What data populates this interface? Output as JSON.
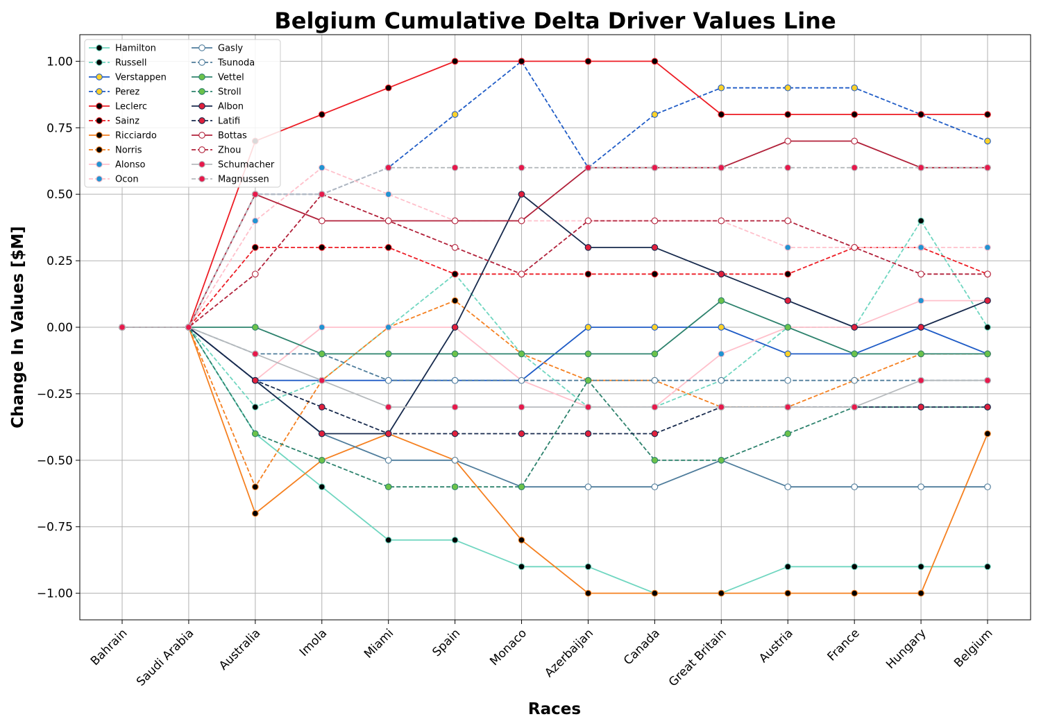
{
  "chart_data": {
    "type": "line",
    "title": "Belgium Cumulative Delta Driver Values Line",
    "xlabel": "Races",
    "ylabel": "Change In Values [$M]",
    "categories": [
      "Bahrain",
      "Saudi Arabia",
      "Australia",
      "Imola",
      "Miami",
      "Spain",
      "Monaco",
      "Azerbaijan",
      "Canada",
      "Great Britain",
      "Austria",
      "France",
      "Hungary",
      "Belgium"
    ],
    "ylim": [
      -1.1,
      1.1
    ],
    "yticks": [
      -1.0,
      -0.75,
      -0.5,
      -0.25,
      0.0,
      0.25,
      0.5,
      0.75,
      1.0
    ],
    "ytick_labels": [
      "−1.00",
      "−0.75",
      "−0.50",
      "−0.25",
      "0.00",
      "0.25",
      "0.50",
      "0.75",
      "1.00"
    ],
    "grid": true,
    "legend_position": "top-left",
    "series": [
      {
        "name": "Hamilton",
        "color": "#6fd6c0",
        "dash": "solid",
        "marker_fill": "#000000",
        "values": [
          0,
          0,
          -0.4,
          -0.6,
          -0.8,
          -0.8,
          -0.9,
          -0.9,
          -1.0,
          -1.0,
          -0.9,
          -0.9,
          -0.9,
          -0.9
        ]
      },
      {
        "name": "Russell",
        "color": "#6fd6c0",
        "dash": "dashed",
        "marker_fill": "#000000",
        "values": [
          0,
          0,
          -0.3,
          -0.2,
          0.0,
          0.2,
          -0.1,
          -0.3,
          -0.3,
          -0.2,
          0.0,
          0.0,
          0.4,
          0.0
        ]
      },
      {
        "name": "Verstappen",
        "color": "#1e5bc6",
        "dash": "solid",
        "marker_fill": "#fcd12a",
        "values": [
          0,
          0,
          -0.2,
          -0.2,
          -0.2,
          -0.2,
          -0.2,
          0.0,
          0.0,
          0.0,
          -0.1,
          -0.1,
          0.0,
          -0.1
        ]
      },
      {
        "name": "Perez",
        "color": "#1e5bc6",
        "dash": "dashed",
        "marker_fill": "#fcd12a",
        "values": [
          0,
          0,
          0.5,
          0.5,
          0.6,
          0.8,
          1.0,
          0.6,
          0.8,
          0.9,
          0.9,
          0.9,
          0.8,
          0.7
        ]
      },
      {
        "name": "Leclerc",
        "color": "#ed1c24",
        "dash": "solid",
        "marker_fill": "#000000",
        "values": [
          0,
          0,
          0.7,
          0.8,
          0.9,
          1.0,
          1.0,
          1.0,
          1.0,
          0.8,
          0.8,
          0.8,
          0.8,
          0.8
        ]
      },
      {
        "name": "Sainz",
        "color": "#ed1c24",
        "dash": "dashed",
        "marker_fill": "#000000",
        "values": [
          0,
          0,
          0.3,
          0.3,
          0.3,
          0.2,
          0.2,
          0.2,
          0.2,
          0.2,
          0.2,
          0.3,
          0.3,
          0.2
        ]
      },
      {
        "name": "Ricciardo",
        "color": "#f58020",
        "dash": "solid",
        "marker_fill": "#000000",
        "values": [
          0,
          0,
          -0.7,
          -0.5,
          -0.4,
          -0.5,
          -0.8,
          -1.0,
          -1.0,
          -1.0,
          -1.0,
          -1.0,
          -1.0,
          -0.4
        ]
      },
      {
        "name": "Norris",
        "color": "#f58020",
        "dash": "dashed",
        "marker_fill": "#000000",
        "values": [
          0,
          0,
          -0.6,
          -0.2,
          0.0,
          0.1,
          -0.1,
          -0.2,
          -0.2,
          -0.3,
          -0.3,
          -0.2,
          -0.1,
          -0.1
        ]
      },
      {
        "name": "Alonso",
        "color": "#ffc0cb",
        "dash": "solid",
        "marker_fill": "#2293d1",
        "values": [
          0,
          0,
          -0.2,
          0.0,
          0.0,
          0.0,
          -0.2,
          -0.3,
          -0.3,
          -0.1,
          0.0,
          0.0,
          0.1,
          0.1
        ]
      },
      {
        "name": "Ocon",
        "color": "#ffc0cb",
        "dash": "dashed",
        "marker_fill": "#2293d1",
        "values": [
          0,
          0,
          0.4,
          0.6,
          0.5,
          0.4,
          0.4,
          0.4,
          0.4,
          0.4,
          0.3,
          0.3,
          0.3,
          0.3
        ]
      },
      {
        "name": "Gasly",
        "color": "#4e7c9b",
        "dash": "solid",
        "marker_fill": "#ffffff",
        "values": [
          0,
          0,
          -0.2,
          -0.4,
          -0.5,
          -0.5,
          -0.6,
          -0.6,
          -0.6,
          -0.5,
          -0.6,
          -0.6,
          -0.6,
          -0.6
        ]
      },
      {
        "name": "Tsunoda",
        "color": "#4e7c9b",
        "dash": "dashed",
        "marker_fill": "#ffffff",
        "values": [
          0,
          0,
          -0.1,
          -0.1,
          -0.2,
          -0.2,
          -0.2,
          -0.2,
          -0.2,
          -0.2,
          -0.2,
          -0.2,
          -0.2,
          -0.2
        ]
      },
      {
        "name": "Vettel",
        "color": "#2d826d",
        "dash": "solid",
        "marker_fill": "#6cc24a",
        "values": [
          0,
          0,
          0.0,
          -0.1,
          -0.1,
          -0.1,
          -0.1,
          -0.1,
          -0.1,
          0.1,
          0.0,
          -0.1,
          -0.1,
          -0.1
        ]
      },
      {
        "name": "Stroll",
        "color": "#2d826d",
        "dash": "dashed",
        "marker_fill": "#6cc24a",
        "values": [
          0,
          0,
          -0.4,
          -0.5,
          -0.6,
          -0.6,
          -0.6,
          -0.2,
          -0.5,
          -0.5,
          -0.4,
          -0.3,
          -0.3,
          -0.3
        ]
      },
      {
        "name": "Albon",
        "color": "#172a4d",
        "dash": "solid",
        "marker_fill": "#e0203c",
        "values": [
          0,
          0,
          -0.2,
          -0.4,
          -0.4,
          0.0,
          0.5,
          0.3,
          0.3,
          0.2,
          0.1,
          0.0,
          0.0,
          0.1
        ]
      },
      {
        "name": "Latifi",
        "color": "#172a4d",
        "dash": "dashed",
        "marker_fill": "#e0203c",
        "values": [
          0,
          0,
          -0.2,
          -0.3,
          -0.4,
          -0.4,
          -0.4,
          -0.4,
          -0.4,
          -0.3,
          -0.3,
          -0.3,
          -0.3,
          -0.3
        ]
      },
      {
        "name": "Bottas",
        "color": "#b12039",
        "dash": "solid",
        "marker_fill": "#ffffff",
        "values": [
          0,
          0,
          0.5,
          0.4,
          0.4,
          0.4,
          0.4,
          0.6,
          0.6,
          0.6,
          0.7,
          0.7,
          0.6,
          0.6
        ]
      },
      {
        "name": "Zhou",
        "color": "#b12039",
        "dash": "dashed",
        "marker_fill": "#ffffff",
        "values": [
          0,
          0,
          0.2,
          0.5,
          0.4,
          0.3,
          0.2,
          0.4,
          0.4,
          0.4,
          0.4,
          0.3,
          0.2,
          0.2
        ]
      },
      {
        "name": "Schumacher",
        "color": "#b6babd",
        "dash": "solid",
        "marker_fill": "#e6194b",
        "values": [
          0,
          0,
          -0.1,
          -0.2,
          -0.3,
          -0.3,
          -0.3,
          -0.3,
          -0.3,
          -0.3,
          -0.3,
          -0.3,
          -0.2,
          -0.2
        ]
      },
      {
        "name": "Magnussen",
        "color": "#b6babd",
        "dash": "dashed",
        "marker_fill": "#e6194b",
        "values": [
          0,
          0,
          0.5,
          0.5,
          0.6,
          0.6,
          0.6,
          0.6,
          0.6,
          0.6,
          0.6,
          0.6,
          0.6,
          0.6
        ]
      }
    ]
  }
}
